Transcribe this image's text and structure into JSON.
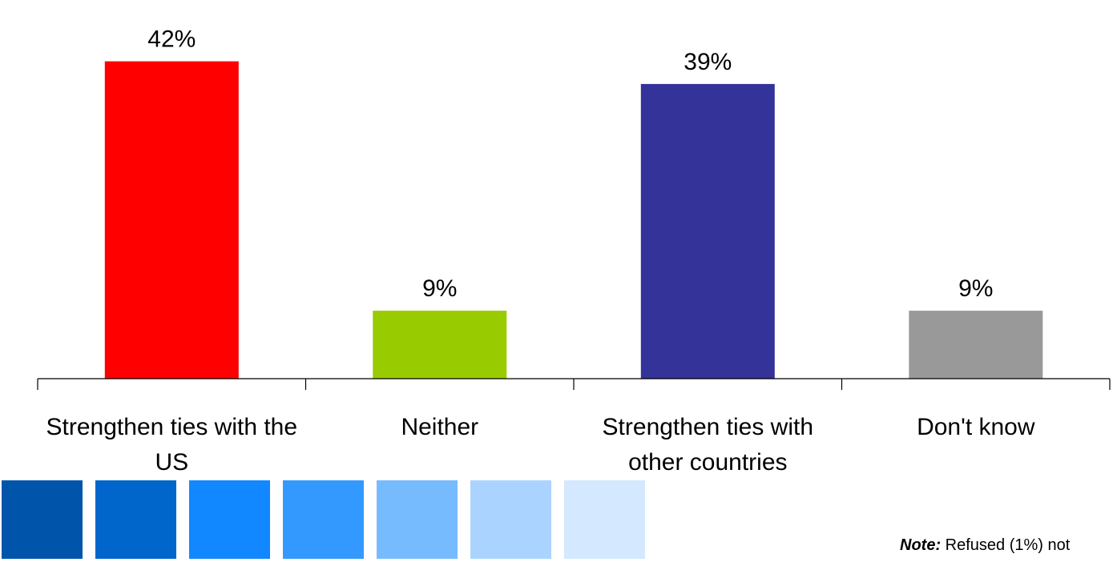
{
  "chart_data": {
    "type": "bar",
    "categories": [
      "Strengthen ties with the US",
      "Neither",
      "Strengthen ties with other countries",
      "Don't know"
    ],
    "values": [
      42,
      9,
      39,
      9
    ],
    "value_labels": [
      "42%",
      "9%",
      "39%",
      "9%"
    ],
    "bar_colors": [
      "#ff0000",
      "#99cc00",
      "#333399",
      "#999999"
    ],
    "ylim": [
      0,
      48
    ],
    "grid": false,
    "legend": "none"
  },
  "decor": {
    "swatch_colors": [
      "#0055aa",
      "#0066cc",
      "#1188ff",
      "#3399ff",
      "#77bbff",
      "#aad4ff",
      "#d4e8ff"
    ]
  },
  "note": {
    "label": "Note:",
    "text": "Refused (1%) not"
  }
}
